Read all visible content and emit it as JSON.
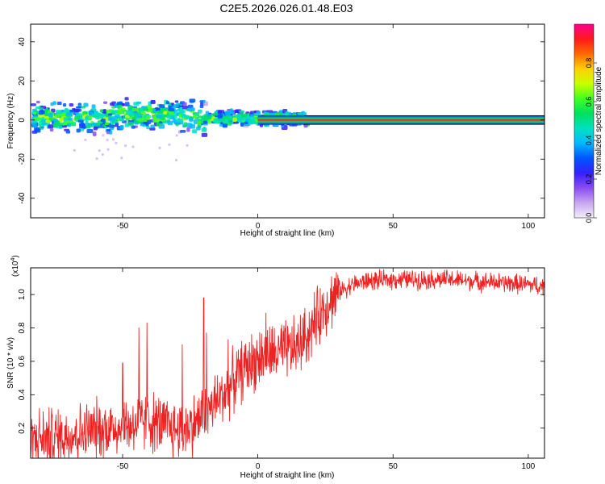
{
  "title": "C2E5.2026.026.01.48.E03",
  "chart_data": [
    {
      "type": "heatmap",
      "xlabel": "Height of straight line (km)",
      "ylabel": "Frequency (Hz)",
      "xlim": [
        -84,
        106
      ],
      "ylim": [
        -50,
        49
      ],
      "x_ticks": [
        -50,
        0,
        50,
        100
      ],
      "y_ticks": [
        -40,
        -20,
        0,
        20,
        40
      ],
      "colorbar": {
        "label": "Normalized spectral amplitude",
        "range": [
          0,
          1
        ],
        "ticks": [
          0.0,
          0.2,
          0.4,
          0.6,
          0.8
        ],
        "tick_labels": [
          "0.0",
          "0.2",
          "0.4",
          "0.6",
          "0.8"
        ],
        "colors": [
          "#f2eefa",
          "#c9a6f2",
          "#8a4cf0",
          "#3420ff",
          "#0055ff",
          "#00b8ff",
          "#00e0c0",
          "#00e060",
          "#40ff20",
          "#c8ff00",
          "#ffd000",
          "#ff6a00",
          "#ff1a1a",
          "#ff0090"
        ]
      },
      "features": [
        {
          "name": "broadband spread",
          "x_range": [
            -84,
            17
          ],
          "freq_range": [
            -8,
            10
          ]
        },
        {
          "name": "narrow tone at 0 Hz",
          "x_range": [
            0,
            106
          ],
          "freq": 0,
          "amplitude": 0.9
        }
      ]
    },
    {
      "type": "line",
      "xlabel": "Height of straight line (km)",
      "ylabel": "SNR (10 * v/v)",
      "y_multiplier": "(x10",
      "y_multiplier_exp": "4",
      "xlim": [
        -84,
        106
      ],
      "ylim": [
        0.02,
        1.16
      ],
      "x_ticks": [
        -50,
        0,
        50,
        100
      ],
      "y_ticks": [
        0.2,
        0.4,
        0.6,
        0.8,
        1.0
      ],
      "y_tick_labels": [
        "0.2",
        "0.4",
        "0.6",
        "0.8",
        "1.0"
      ],
      "series": [
        {
          "name": "SNR",
          "color": "#ee2222",
          "trend": {
            "x": [
              -84,
              -70,
              -60,
              -50,
              -40,
              -35,
              -30,
              -25,
              -20,
              -15,
              -10,
              -5,
              0,
              5,
              10,
              15,
              20,
              25,
              30,
              35,
              40,
              50,
              60,
              70,
              80,
              90,
              100,
              106
            ],
            "y": [
              0.13,
              0.16,
              0.19,
              0.21,
              0.24,
              0.21,
              0.19,
              0.21,
              0.28,
              0.36,
              0.46,
              0.56,
              0.62,
              0.64,
              0.66,
              0.69,
              0.8,
              0.94,
              1.02,
              1.06,
              1.08,
              1.09,
              1.09,
              1.09,
              1.08,
              1.07,
              1.06,
              1.05
            ]
          },
          "spikes": [
            {
              "x": -50,
              "y": 0.59
            },
            {
              "x": -44,
              "y": 0.8
            },
            {
              "x": -41,
              "y": 0.83
            },
            {
              "x": -28,
              "y": 0.7
            },
            {
              "x": -20,
              "y": 0.98
            },
            {
              "x": -19,
              "y": 0.77
            },
            {
              "x": -11,
              "y": 0.73
            },
            {
              "x": 3,
              "y": 0.35
            },
            {
              "x": 3,
              "y": 0.89
            }
          ]
        }
      ]
    }
  ]
}
